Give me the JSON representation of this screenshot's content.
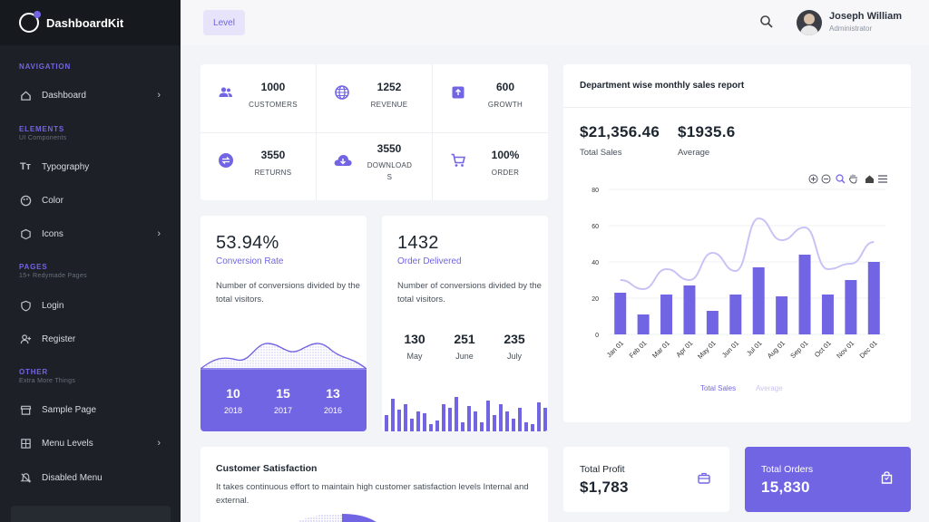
{
  "brand": {
    "name": "DashboardKit"
  },
  "sidebar": {
    "sections": [
      {
        "label": "NAVIGATION",
        "sub": ""
      },
      {
        "label": "ELEMENTS",
        "sub": "UI Components"
      },
      {
        "label": "PAGES",
        "sub": "15+ Redymade Pages"
      },
      {
        "label": "OTHER",
        "sub": "Extra More Things"
      }
    ],
    "items": [
      {
        "label": "Dashboard",
        "icon": "home-icon"
      },
      {
        "label": "Typography",
        "icon": "typography-icon"
      },
      {
        "label": "Color",
        "icon": "palette-icon"
      },
      {
        "label": "Icons",
        "icon": "icons-icon"
      },
      {
        "label": "Login",
        "icon": "shield-icon"
      },
      {
        "label": "Register",
        "icon": "user-plus-icon"
      },
      {
        "label": "Sample Page",
        "icon": "storefront-icon"
      },
      {
        "label": "Menu Levels",
        "icon": "menu-icon"
      },
      {
        "label": "Disabled Menu",
        "icon": "disabled-icon"
      }
    ]
  },
  "header": {
    "level_label": "Level",
    "user_name": "Joseph William",
    "user_role": "Administrator"
  },
  "stats": [
    {
      "value": "1000",
      "label": "CUSTOMERS",
      "icon": "users-icon"
    },
    {
      "value": "1252",
      "label": "REVENUE",
      "icon": "globe-icon"
    },
    {
      "value": "600",
      "label": "GROWTH",
      "icon": "archive-icon"
    },
    {
      "value": "3550",
      "label": "RETURNS",
      "icon": "swap-icon"
    },
    {
      "value": "3550",
      "label": "DOWNLOAD S",
      "icon": "cloud-download-icon"
    },
    {
      "value": "100%",
      "label": "ORDER",
      "icon": "cart-icon"
    }
  ],
  "conversion": {
    "value": "53.94%",
    "label": "Conversion Rate",
    "desc": "Number of conversions divided by the total visitors.",
    "years": [
      {
        "value": "10",
        "year": "2018"
      },
      {
        "value": "15",
        "year": "2017"
      },
      {
        "value": "13",
        "year": "2016"
      }
    ]
  },
  "orders": {
    "value": "1432",
    "label": "Order Delivered",
    "desc": "Number of conversions divided by the total visitors.",
    "months": [
      {
        "value": "130",
        "month": "May"
      },
      {
        "value": "251",
        "month": "June"
      },
      {
        "value": "235",
        "month": "July"
      }
    ]
  },
  "sales": {
    "title": "Department wise monthly sales report",
    "total_value": "$21,356.46",
    "total_label": "Total Sales",
    "avg_value": "$1935.6",
    "avg_label": "Average"
  },
  "satisfaction": {
    "title": "Customer Satisfaction",
    "desc": "It takes continuous effort to maintain high customer satisfaction levels Internal and external."
  },
  "profit": {
    "label": "Total Profit",
    "value": "$1,783"
  },
  "total_orders": {
    "label": "Total Orders",
    "value": "15,830"
  },
  "colors": {
    "accent": "#7265e3",
    "accent_light": "#c9c3f5",
    "sidebar": "#1d2127"
  },
  "chart_data": {
    "type": "bar",
    "categories": [
      "Jan 01",
      "Feb 01",
      "Mar 01",
      "Apr 01",
      "May 01",
      "Jun 01",
      "Jul 01",
      "Aug 01",
      "Sep 01",
      "Oct 01",
      "Nov 01",
      "Dec 01"
    ],
    "series": [
      {
        "name": "Total Sales",
        "type": "bar",
        "values": [
          23,
          11,
          22,
          27,
          13,
          22,
          37,
          21,
          44,
          22,
          30,
          40
        ]
      },
      {
        "name": "Average",
        "type": "line",
        "values": [
          30,
          25,
          36,
          30,
          45,
          35,
          64,
          52,
          59,
          36,
          39,
          51
        ]
      }
    ],
    "ylim": [
      0,
      80
    ],
    "yticks": [
      0,
      20,
      40,
      60,
      80
    ],
    "grid": true,
    "legend": "bottom-center"
  }
}
